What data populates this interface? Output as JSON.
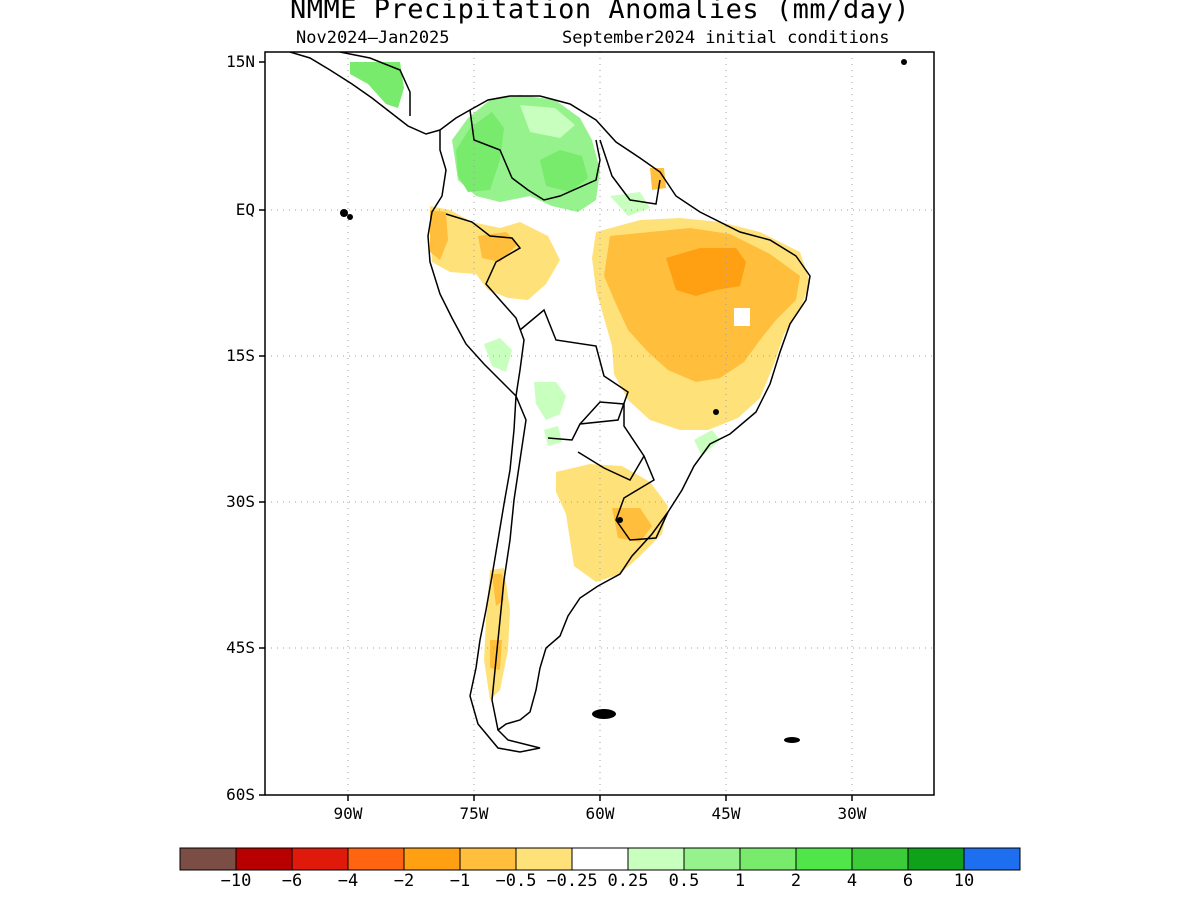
{
  "map": {
    "title": "NMME Precipitation Anomalies (mm/day)",
    "period": "Nov2024–Jan2025",
    "initial_conditions": "September2024 initial conditions",
    "lat_labels": [
      "15N",
      "EQ",
      "15S",
      "30S",
      "45S",
      "60S"
    ],
    "lon_labels": [
      "90W",
      "75W",
      "60W",
      "45W",
      "30W"
    ]
  },
  "colorbar": {
    "colors": [
      "#7a4e45",
      "#b80000",
      "#e01a0a",
      "#ff6410",
      "#ffa012",
      "#ffbe3c",
      "#ffe17a",
      "#ffffff",
      "#c8ffbe",
      "#96f28c",
      "#78eb6c",
      "#50e64a",
      "#3ccc3a",
      "#10a11a",
      "#1e6ef0"
    ],
    "labels": [
      "−10",
      "−6",
      "−4",
      "−2",
      "−1",
      "−0.5",
      "−0.25",
      "0.25",
      "0.5",
      "1",
      "2",
      "4",
      "6",
      "10"
    ]
  }
}
